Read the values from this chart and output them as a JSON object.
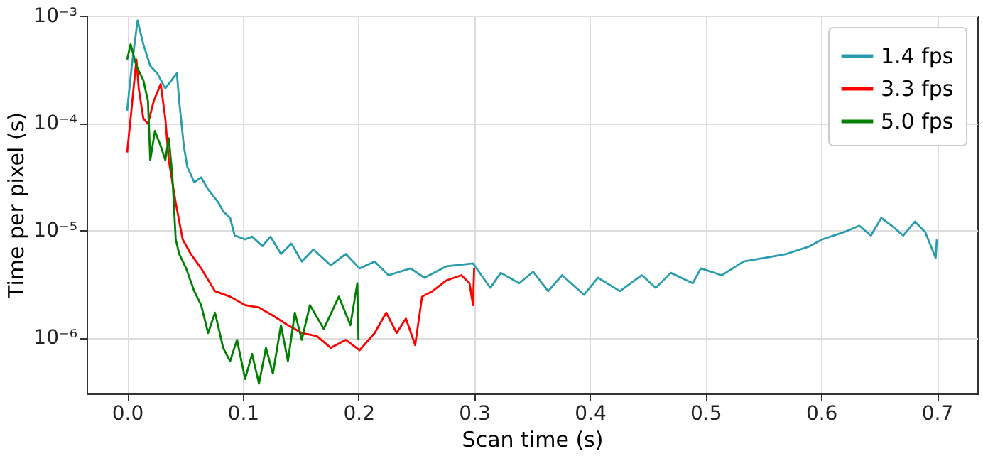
{
  "chart_data": {
    "type": "line",
    "xlabel": "Scan time (s)",
    "ylabel": "Time per pixel (s)",
    "log": "y",
    "grid": true,
    "legend": "top right",
    "line_style": "solid",
    "marker": "none",
    "xlim": [
      -0.035,
      0.735
    ],
    "xticks": [
      {
        "value": 0,
        "label": "0.0"
      },
      0.1,
      0.2,
      0.3,
      0.4,
      0.5,
      0.6,
      0.7
    ],
    "ylim": [
      3e-07,
      0.001
    ],
    "yticks": [
      {
        "value": 0.001,
        "label": "10⁻³"
      },
      {
        "value": 0.0001,
        "label": "10⁻⁴"
      },
      {
        "value": 1e-05,
        "label": "10⁻⁵"
      },
      {
        "value": 1e-06,
        "label": "10⁻⁶"
      }
    ],
    "series": [
      {
        "name": "1.4 fps",
        "color": "#2a9caf",
        "x": [
          0,
          0.004,
          0.009,
          0.014,
          0.02,
          0.026,
          0.033,
          0.043,
          0.045,
          0.049,
          0.052,
          0.058,
          0.064,
          0.07,
          0.079,
          0.083,
          0.089,
          0.093,
          0.102,
          0.108,
          0.117,
          0.124,
          0.133,
          0.142,
          0.151,
          0.161,
          0.176,
          0.189,
          0.201,
          0.214,
          0.226,
          0.245,
          0.257,
          0.276,
          0.299,
          0.314,
          0.323,
          0.339,
          0.351,
          0.364,
          0.376,
          0.395,
          0.407,
          0.426,
          0.445,
          0.457,
          0.47,
          0.489,
          0.496,
          0.514,
          0.533,
          0.551,
          0.57,
          0.589,
          0.601,
          0.62,
          0.633,
          0.643,
          0.652,
          0.661,
          0.671,
          0.681,
          0.69,
          0.699,
          0.7
        ],
        "values": [
          0.00013,
          0.00034,
          0.0009,
          0.00054,
          0.00034,
          0.00029,
          0.00021,
          0.00029,
          0.00016,
          6.1e-05,
          3.9e-05,
          2.8e-05,
          3.1e-05,
          2.4e-05,
          1.8e-05,
          1.5e-05,
          1.3e-05,
          8.9e-06,
          8.2e-06,
          8.7e-06,
          7.1e-06,
          8.7e-06,
          6e-06,
          7.5e-06,
          5.1e-06,
          6.6e-06,
          4.7e-06,
          6e-06,
          4.4e-06,
          5.1e-06,
          3.8e-06,
          4.4e-06,
          3.6e-06,
          4.6e-06,
          4.9e-06,
          2.9e-06,
          4e-06,
          3.2e-06,
          4.1e-06,
          2.7e-06,
          3.8e-06,
          2.5e-06,
          3.6e-06,
          2.7e-06,
          3.8e-06,
          2.9e-06,
          4e-06,
          3.2e-06,
          4.4e-06,
          3.8e-06,
          5.1e-06,
          5.5e-06,
          6e-06,
          7e-06,
          8.2e-06,
          9.6e-06,
          1.1e-05,
          8.9e-06,
          1.3e-05,
          1.1e-05,
          8.9e-06,
          1.2e-05,
          9.6e-06,
          5.5e-06,
          8.2e-06
        ]
      },
      {
        "name": "3.3 fps",
        "color": "#ff0000",
        "x": [
          0,
          0.003,
          0.008,
          0.01,
          0.014,
          0.018,
          0.023,
          0.029,
          0.033,
          0.036,
          0.042,
          0.048,
          0.055,
          0.064,
          0.076,
          0.089,
          0.102,
          0.114,
          0.126,
          0.139,
          0.151,
          0.164,
          0.176,
          0.189,
          0.201,
          0.214,
          0.224,
          0.233,
          0.241,
          0.249,
          0.255,
          0.264,
          0.276,
          0.289,
          0.296,
          0.299,
          0.3
        ],
        "values": [
          5.3e-05,
          0.00011,
          0.00039,
          0.00021,
          0.00011,
          9.8e-05,
          0.00016,
          0.00023,
          0.00011,
          4.5e-05,
          1.8e-05,
          8.2e-06,
          6e-06,
          4.4e-06,
          2.7e-06,
          2.4e-06,
          2e-06,
          1.9e-06,
          1.6e-06,
          1.3e-06,
          1.1e-06,
          1.03e-06,
          8e-07,
          9.5e-07,
          7.6e-07,
          1.1e-06,
          1.7e-06,
          1.1e-06,
          1.5e-06,
          8.5e-07,
          2.4e-06,
          2.7e-06,
          3.4e-06,
          3.8e-06,
          3.2e-06,
          2e-06,
          4.4e-06
        ]
      },
      {
        "name": "5.0 fps",
        "color": "#008000",
        "x": [
          0,
          0.003,
          0.008,
          0.014,
          0.018,
          0.02,
          0.024,
          0.029,
          0.033,
          0.036,
          0.039,
          0.042,
          0.045,
          0.051,
          0.058,
          0.064,
          0.07,
          0.076,
          0.083,
          0.089,
          0.095,
          0.102,
          0.108,
          0.114,
          0.12,
          0.126,
          0.133,
          0.139,
          0.145,
          0.151,
          0.158,
          0.17,
          0.183,
          0.193,
          0.199,
          0.2
        ],
        "values": [
          0.00039,
          0.00054,
          0.00034,
          0.00025,
          0.00016,
          4.5e-05,
          8.4e-05,
          6.1e-05,
          4.5e-05,
          7.2e-05,
          3.3e-05,
          8.2e-06,
          6e-06,
          4.4e-06,
          2.7e-06,
          2e-06,
          1.1e-06,
          1.7e-06,
          8e-07,
          6e-07,
          9.5e-07,
          4.1e-07,
          7e-07,
          3.7e-07,
          8e-07,
          4.6e-07,
          1.3e-06,
          6e-07,
          1.7e-06,
          9.5e-07,
          2e-06,
          1.2e-06,
          2.4e-06,
          1.3e-06,
          3.2e-06,
          9.5e-07
        ]
      }
    ]
  }
}
